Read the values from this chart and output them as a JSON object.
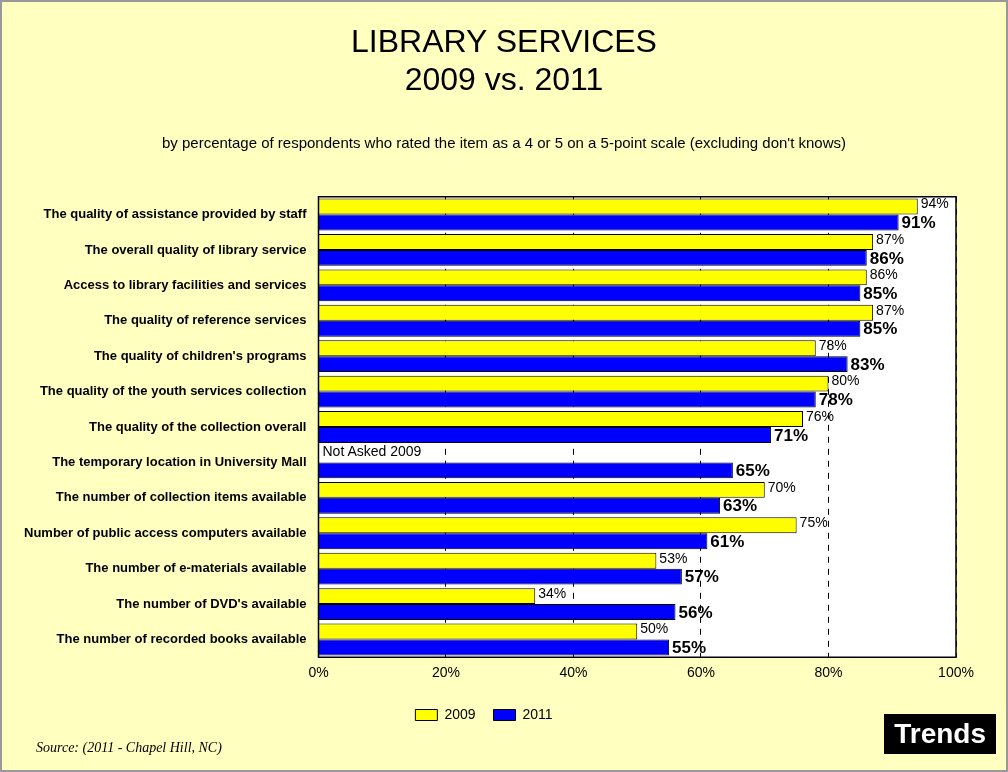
{
  "chart_data": {
    "type": "bar",
    "orientation": "horizontal",
    "title": "LIBRARY SERVICES\n2009 vs. 2011",
    "subtitle": "by percentage of respondents who rated the item as a 4 or 5 on a 5-point scale (excluding don't knows)",
    "categories": [
      "The quality of assistance provided by staff",
      "The overall quality of library service",
      "Access to library facilities and services",
      "The quality of reference services",
      "The quality of children's programs",
      "The quality of the youth services collection",
      "The quality of the collection overall",
      "The temporary location in University Mall",
      "The number of collection items available",
      "Number of public access computers available",
      "The number of e-materials available",
      "The number of DVD's available",
      "The number of recorded books available"
    ],
    "series": [
      {
        "name": "2009",
        "color": "#ffff00",
        "values": [
          94,
          87,
          86,
          87,
          78,
          80,
          76,
          null,
          70,
          75,
          53,
          34,
          50
        ],
        "value_labels": [
          "94%",
          "87%",
          "86%",
          "87%",
          "78%",
          "80%",
          "76%",
          null,
          "70%",
          "75%",
          "53%",
          "34%",
          "50%"
        ]
      },
      {
        "name": "2011",
        "color": "#0000ff",
        "values": [
          91,
          86,
          85,
          85,
          83,
          78,
          71,
          65,
          63,
          61,
          57,
          56,
          55
        ],
        "value_labels": [
          "91%",
          "86%",
          "85%",
          "85%",
          "83%",
          "78%",
          "71%",
          "65%",
          "63%",
          "61%",
          "57%",
          "56%",
          "55%"
        ]
      }
    ],
    "xlim": [
      0,
      100
    ],
    "xticks": [
      {
        "value": 0,
        "label": "0%"
      },
      {
        "value": 20,
        "label": "20%"
      },
      {
        "value": 40,
        "label": "40%"
      },
      {
        "value": 60,
        "label": "60%"
      },
      {
        "value": 80,
        "label": "80%"
      },
      {
        "value": 100,
        "label": "100%"
      }
    ],
    "grid": "x",
    "legend": "bottom",
    "annotations": [
      {
        "text": "Not Asked 2009",
        "x": 0,
        "y": "The temporary location in University Mall"
      },
      "Source:  (2011 - Chapel Hill, NC)",
      "Trends"
    ]
  }
}
